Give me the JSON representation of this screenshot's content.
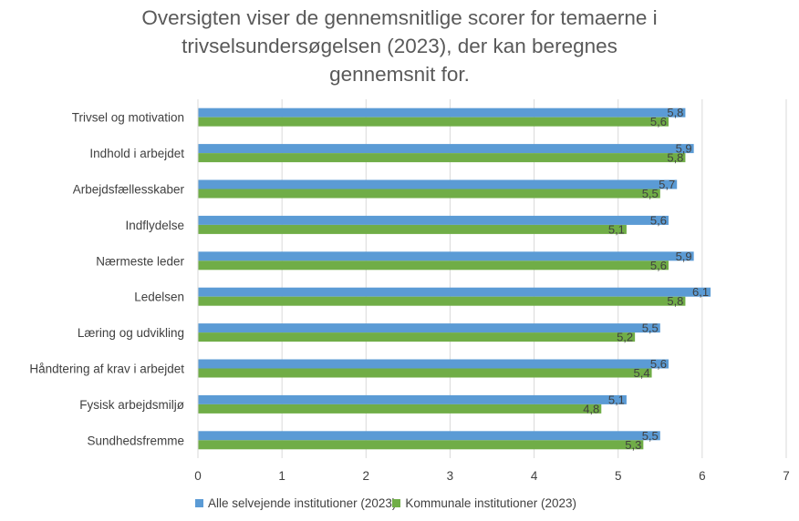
{
  "chart_data": {
    "type": "bar",
    "orientation": "horizontal",
    "title_lines": [
      "Oversigten viser de gennemsnitlige scorer for temaerne i",
      "trivselsundersøgelsen (2023), der kan beregnes",
      "gennemsnit for."
    ],
    "categories": [
      "Trivsel og motivation",
      "Indhold i arbejdet",
      "Arbejdsfællesskaber",
      "Indflydelse",
      "Nærmeste leder",
      "Ledelsen",
      "Læring og udvikling",
      "Håndtering af krav i arbejdet",
      "Fysisk arbejdsmiljø",
      "Sundhedsfremme"
    ],
    "series": [
      {
        "name": "Alle selvejende institutioner (2023)",
        "color": "#5b9bd5",
        "values": [
          5.8,
          5.9,
          5.7,
          5.6,
          5.9,
          6.1,
          5.5,
          5.6,
          5.1,
          5.5
        ],
        "labels": [
          "5,8",
          "5,9",
          "5,7",
          "5,6",
          "5,9",
          "6,1",
          "5,5",
          "5,6",
          "5,1",
          "5,5"
        ]
      },
      {
        "name": "Kommunale institutioner (2023)",
        "color": "#70ad47",
        "values": [
          5.6,
          5.8,
          5.5,
          5.1,
          5.6,
          5.8,
          5.2,
          5.4,
          4.8,
          5.3
        ],
        "labels": [
          "5,6",
          "5,8",
          "5,5",
          "5,1",
          "5,6",
          "5,8",
          "5,2",
          "5,4",
          "4,8",
          "5,3"
        ]
      }
    ],
    "xlim": [
      0,
      7
    ],
    "xticks": [
      0,
      1,
      2,
      3,
      4,
      5,
      6,
      7
    ],
    "xtick_labels": [
      "0",
      "1",
      "2",
      "3",
      "4",
      "5",
      "6",
      "7"
    ],
    "grid": "vertical",
    "legend": "bottom"
  }
}
